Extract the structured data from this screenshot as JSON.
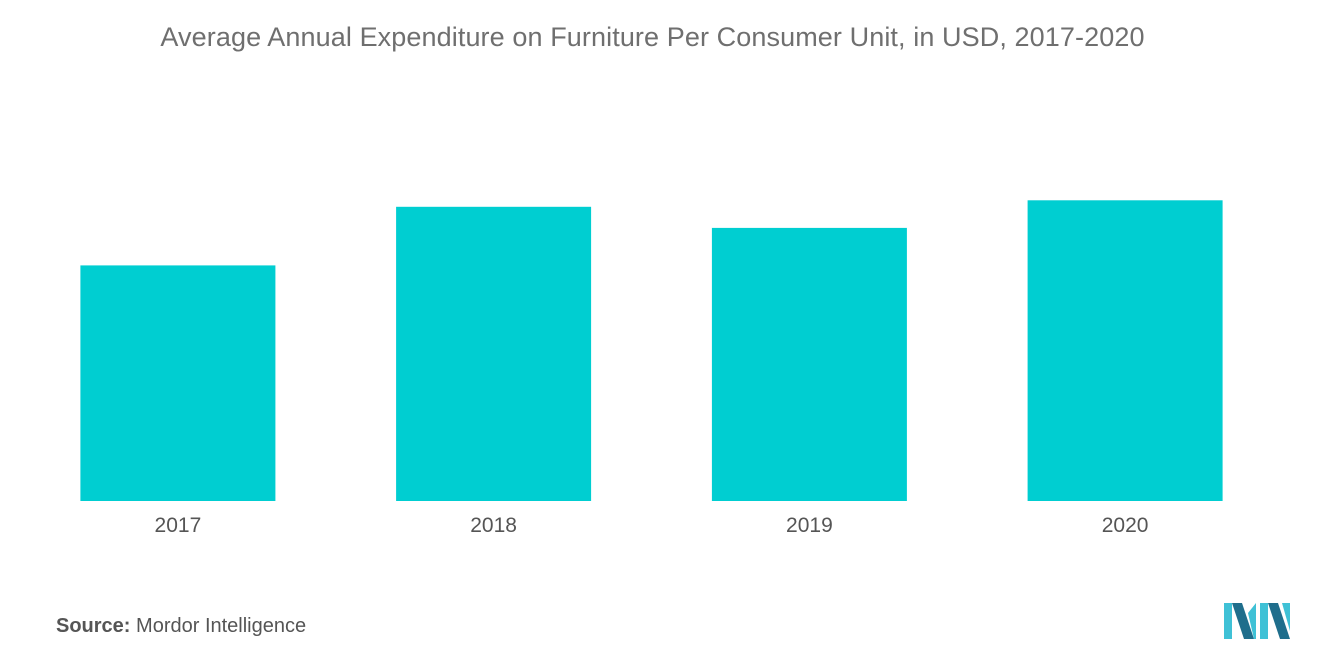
{
  "chart_data": {
    "type": "bar",
    "title": "Average Annual Expenditure on Furniture Per Consumer Unit, in USD, 2017-2020",
    "categories": [
      "2017",
      "2018",
      "2019",
      "2020"
    ],
    "values": [
      470,
      587,
      545,
      600
    ],
    "xlabel": "",
    "ylabel": "",
    "ylim": [
      0,
      850
    ],
    "grid": false,
    "legend": "none",
    "bar_color": "#00ced1"
  },
  "source": {
    "label": "Source:",
    "text": "Mordor Intelligence"
  },
  "logo": {
    "name": "mordor-intelligence-logo",
    "color_dark": "#1f6e8c",
    "color_light": "#3fc1d6"
  }
}
